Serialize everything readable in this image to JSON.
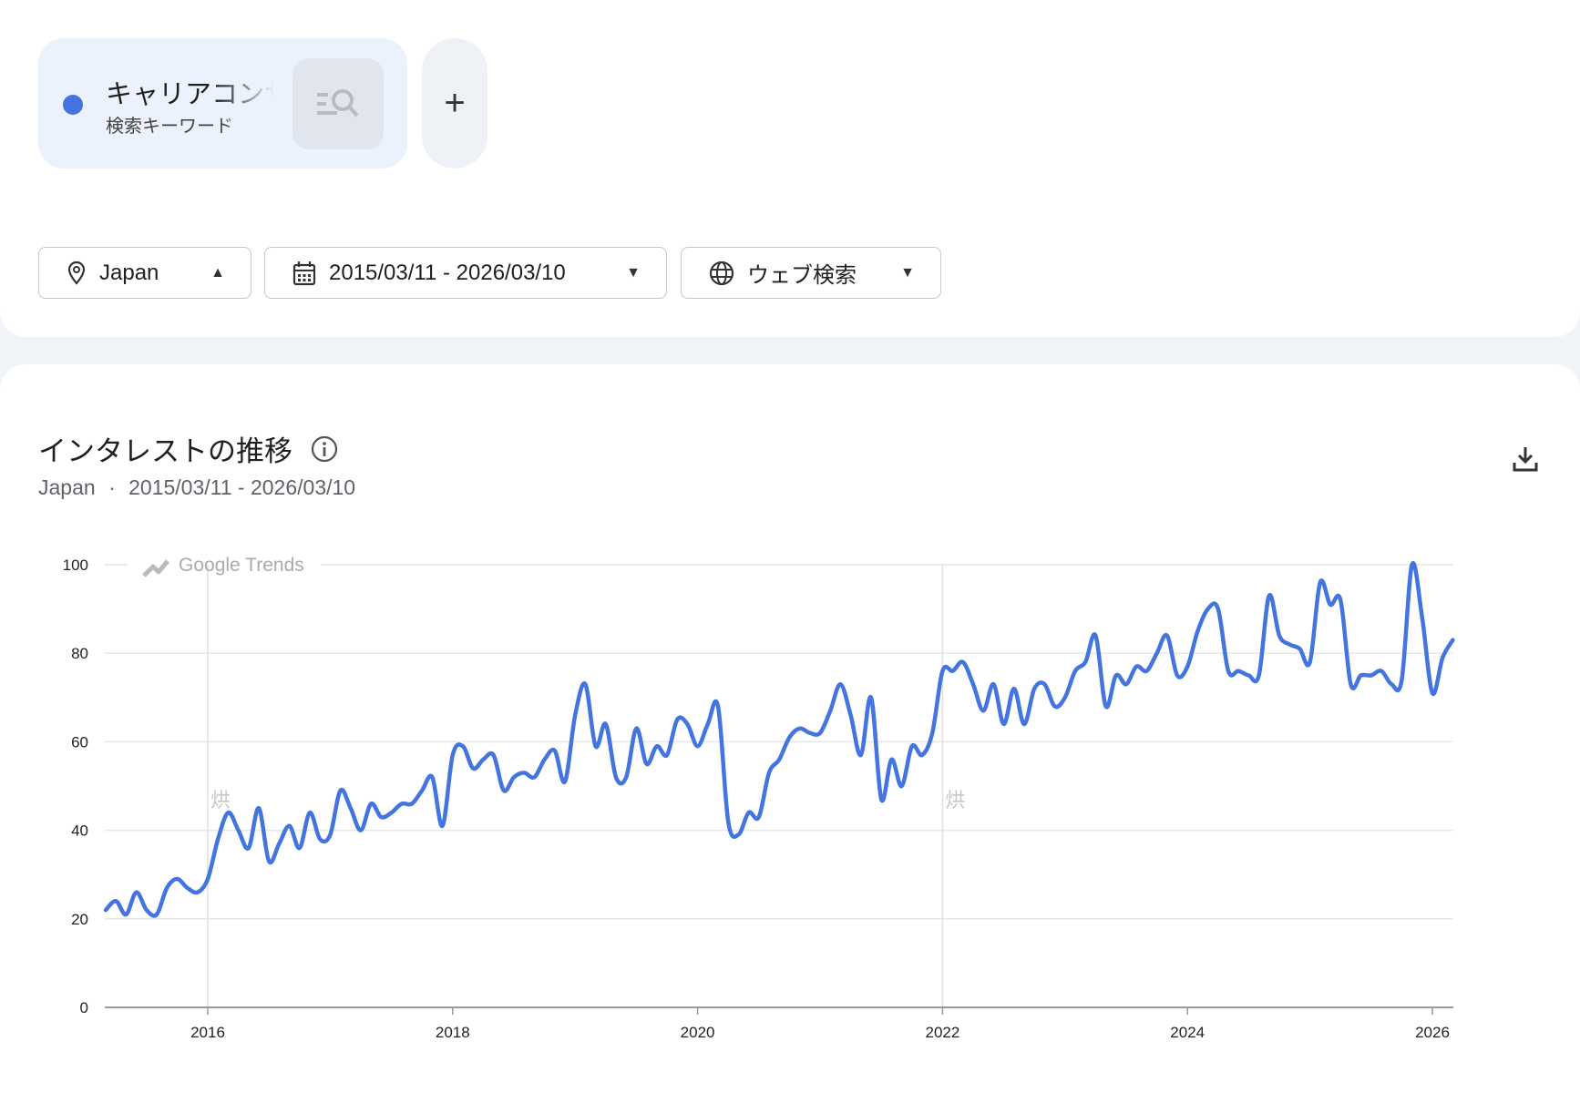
{
  "term": {
    "name": "キャリアコンサルタント",
    "type": "検索キーワード",
    "color": "#4374e0",
    "icon": "search-list-icon"
  },
  "add_label": "+",
  "filters": {
    "region": {
      "label": "Japan",
      "icon": "location-pin-icon",
      "caret": "▲"
    },
    "date": {
      "label": "2015/03/11 - 2026/03/10",
      "icon": "calendar-icon",
      "caret": "▼"
    },
    "property": {
      "label": "ウェブ検索",
      "icon": "globe-icon",
      "caret": "▼"
    }
  },
  "section": {
    "title": "インタレストの推移",
    "subtitle_region": "Japan",
    "subtitle_sep": "·",
    "subtitle_range": "2015/03/11 - 2026/03/10"
  },
  "watermark": "Google Trends",
  "note_marker": "烘",
  "chart_data": {
    "type": "line",
    "title": "",
    "xlabel": "",
    "ylabel": "",
    "ylim": [
      0,
      100
    ],
    "yticks": [
      "0",
      "20",
      "40",
      "60",
      "80",
      "100"
    ],
    "xticks": [
      "2016",
      "2018",
      "2020",
      "2022",
      "2024",
      "2026"
    ],
    "grid": true,
    "line_color": "#4374e0",
    "note_markers_at": [
      "2016-01",
      "2022-01"
    ],
    "start": "2015-03",
    "interval": "month",
    "values": [
      22,
      24,
      21,
      26,
      22,
      21,
      27,
      29,
      27,
      26,
      29,
      38,
      44,
      40,
      36,
      45,
      33,
      37,
      41,
      36,
      44,
      38,
      39,
      49,
      45,
      40,
      46,
      43,
      44,
      46,
      46,
      49,
      52,
      41,
      57,
      59,
      54,
      56,
      57,
      49,
      52,
      53,
      52,
      56,
      58,
      51,
      66,
      73,
      59,
      64,
      52,
      52,
      63,
      55,
      59,
      57,
      65,
      64,
      59,
      64,
      68,
      42,
      39,
      44,
      43,
      53,
      56,
      61,
      63,
      62,
      62,
      67,
      73,
      66,
      57,
      70,
      47,
      56,
      50,
      59,
      57,
      62,
      76,
      76,
      78,
      73,
      67,
      73,
      64,
      72,
      64,
      72,
      73,
      68,
      70,
      76,
      78,
      84,
      68,
      75,
      73,
      77,
      76,
      80,
      84,
      75,
      77,
      85,
      90,
      90,
      76,
      76,
      75,
      75,
      93,
      84,
      82,
      81,
      78,
      96,
      91,
      92,
      73,
      75,
      75,
      76,
      73,
      74,
      100,
      88,
      71,
      79,
      83
    ]
  }
}
